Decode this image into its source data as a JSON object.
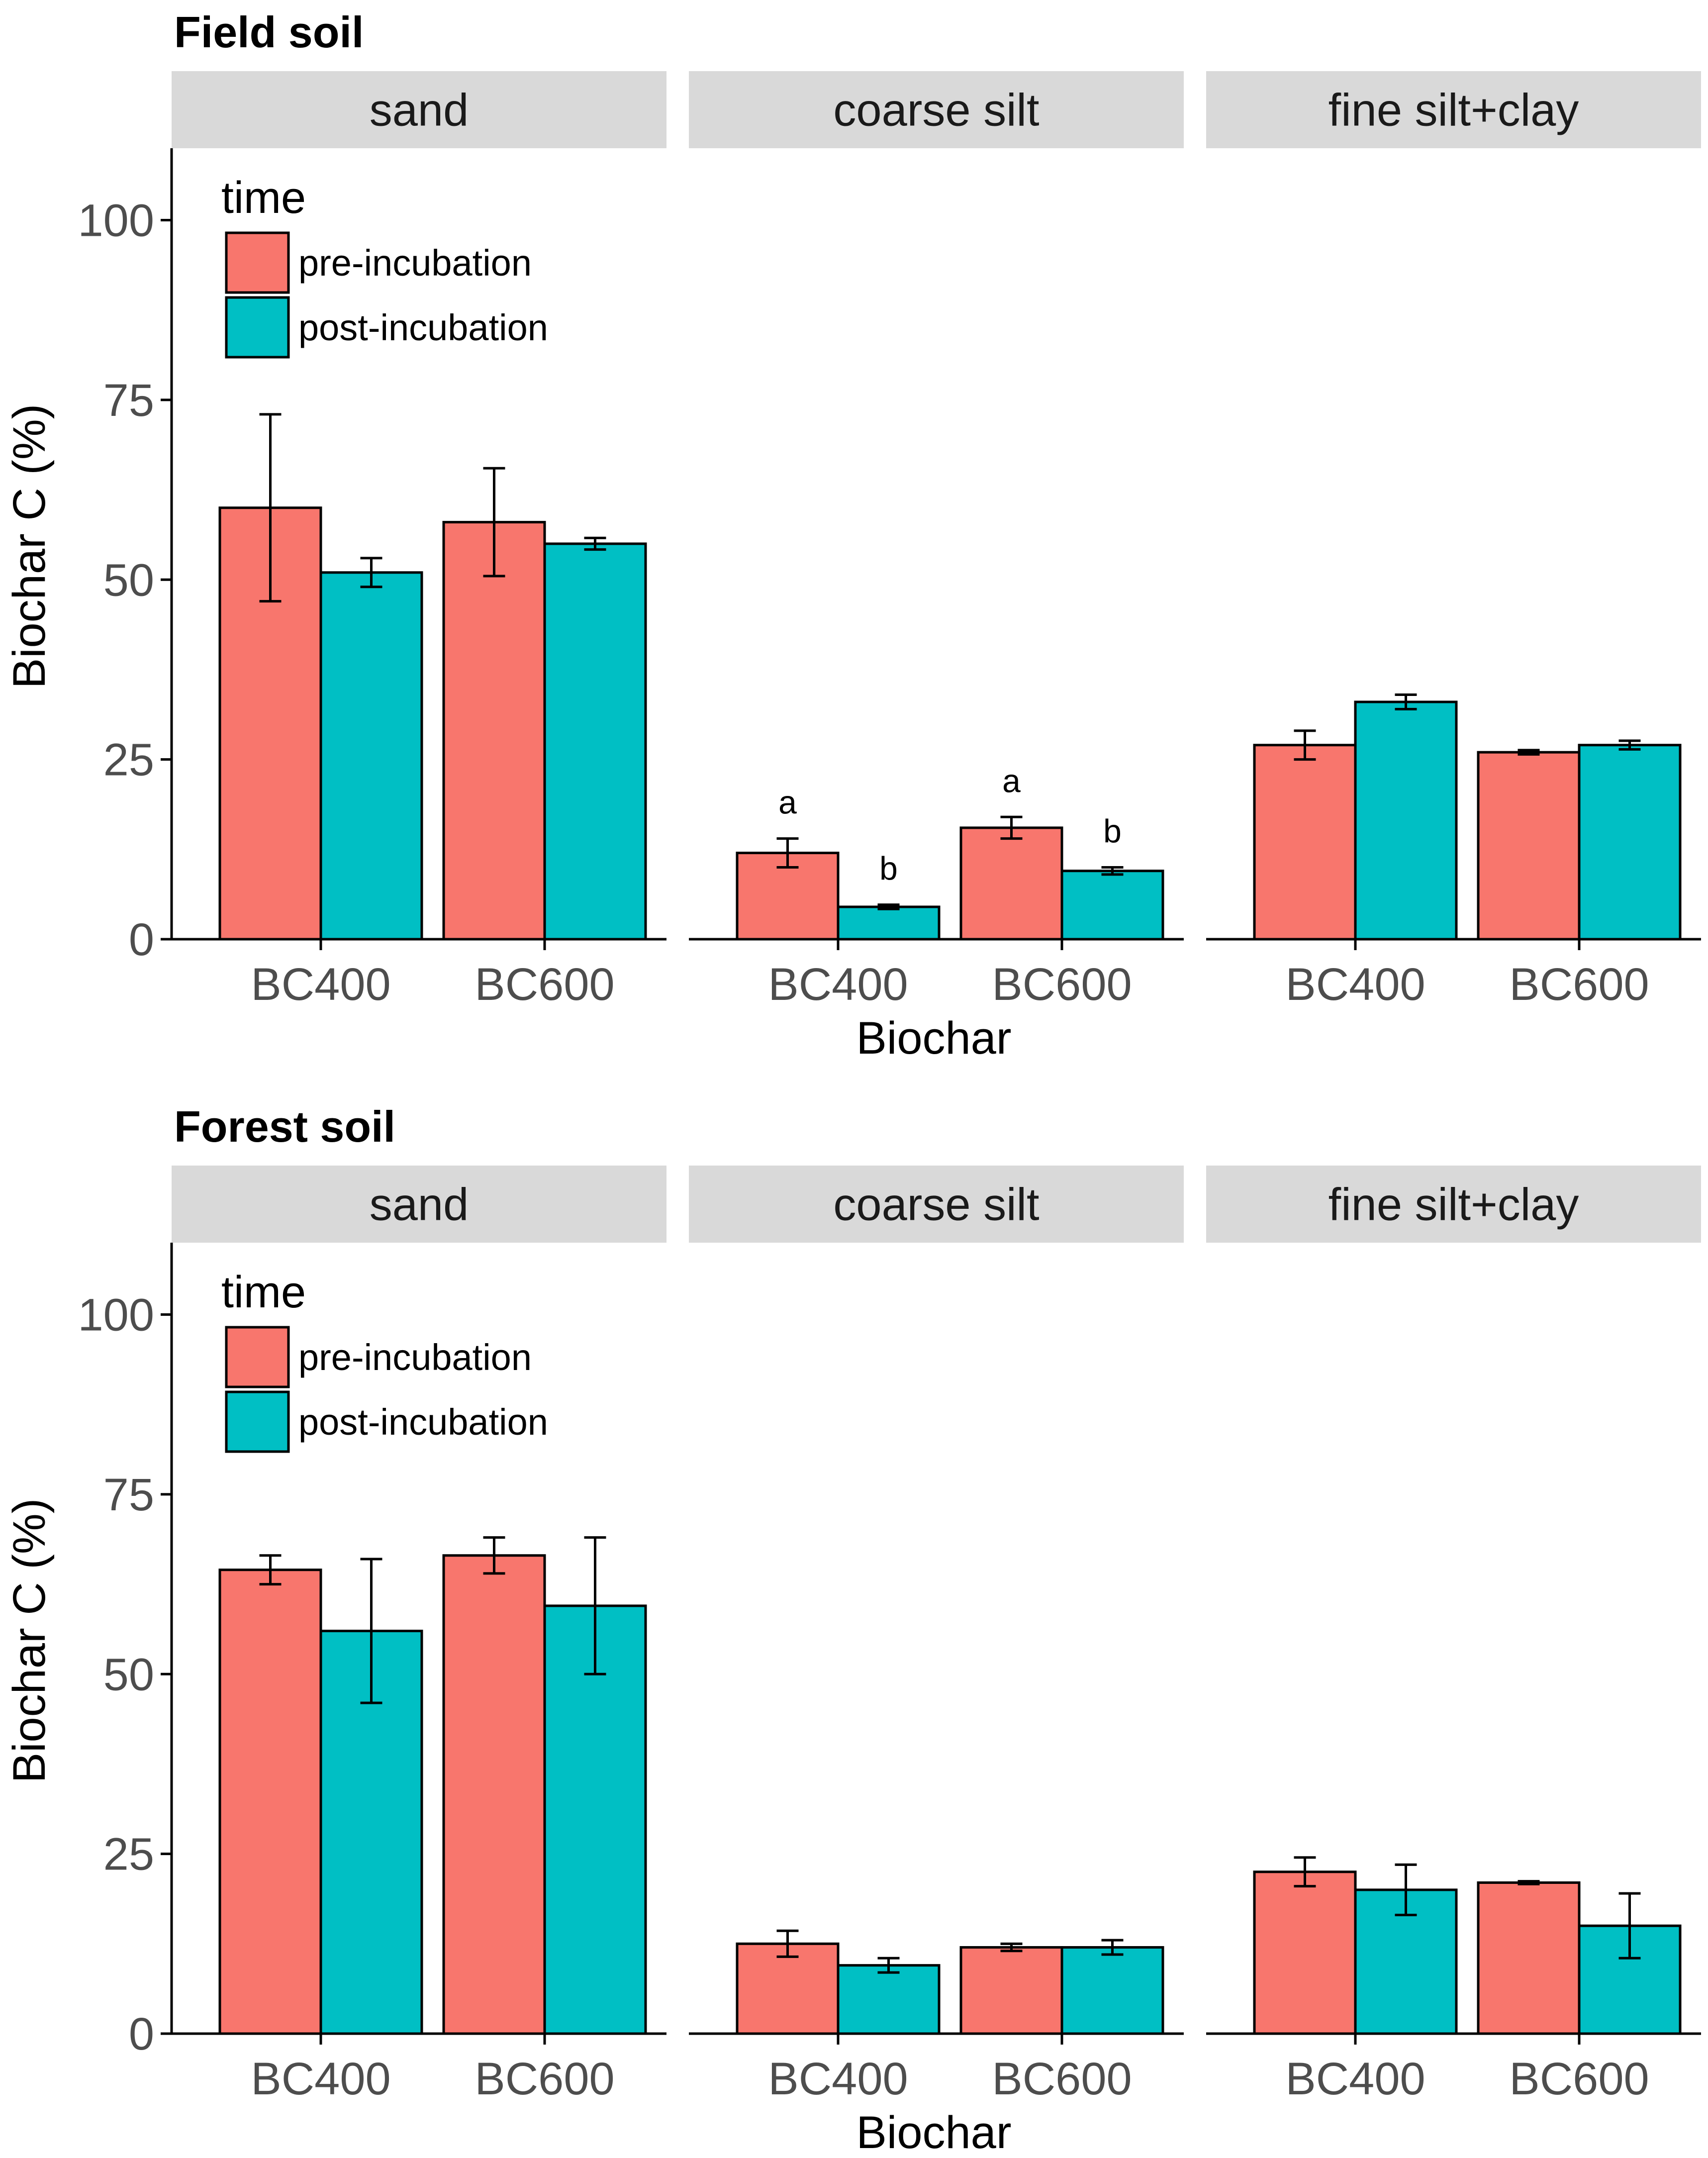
{
  "colors": {
    "pre_incubation": "#F8766D",
    "post_incubation": "#00BFC4",
    "strip_background": "#D9D9D9"
  },
  "chart_data": [
    {
      "type": "bar",
      "title": "Field soil",
      "xlabel": "Biochar",
      "ylabel": "Biochar C (%)",
      "ylim": [
        0,
        110
      ],
      "yticks": [
        "0",
        "25",
        "50",
        "75",
        "100"
      ],
      "categories": [
        "BC400",
        "BC600"
      ],
      "facets": [
        "sand",
        "coarse silt",
        "fine silt+clay"
      ],
      "legend": {
        "title": "time",
        "position": "top-left",
        "entries": [
          "pre-incubation",
          "post-incubation"
        ]
      },
      "series": [
        {
          "name": "pre-incubation",
          "values": {
            "sand": [
              60,
              58
            ],
            "coarse silt": [
              12,
              15.5
            ],
            "fine silt+clay": [
              27,
              26
            ]
          },
          "errors": {
            "sand": [
              13,
              7.5
            ],
            "coarse silt": [
              2,
              1.5
            ],
            "fine silt+clay": [
              2,
              0.3
            ]
          },
          "letters": {
            "coarse silt": [
              "a",
              "a"
            ]
          }
        },
        {
          "name": "post-incubation",
          "values": {
            "sand": [
              51,
              55
            ],
            "coarse silt": [
              4.5,
              9.5
            ],
            "fine silt+clay": [
              33,
              27
            ]
          },
          "errors": {
            "sand": [
              2,
              0.8
            ],
            "coarse silt": [
              0.3,
              0.5
            ],
            "fine silt+clay": [
              1,
              0.6
            ]
          },
          "letters": {
            "coarse silt": [
              "b",
              "b"
            ]
          }
        }
      ]
    },
    {
      "type": "bar",
      "title": "Forest soil",
      "xlabel": "Biochar",
      "ylabel": "Biochar C (%)",
      "ylim": [
        0,
        110
      ],
      "yticks": [
        "0",
        "25",
        "50",
        "75",
        "100"
      ],
      "categories": [
        "BC400",
        "BC600"
      ],
      "facets": [
        "sand",
        "coarse silt",
        "fine silt+clay"
      ],
      "legend": {
        "title": "time",
        "position": "top-left",
        "entries": [
          "pre-incubation",
          "post-incubation"
        ]
      },
      "series": [
        {
          "name": "pre-incubation",
          "values": {
            "sand": [
              64.5,
              66.5
            ],
            "coarse silt": [
              12.5,
              12
            ],
            "fine silt+clay": [
              22.5,
              21
            ]
          },
          "errors": {
            "sand": [
              2,
              2.5
            ],
            "coarse silt": [
              1.8,
              0.5
            ],
            "fine silt+clay": [
              2,
              0.2
            ]
          },
          "letters": {}
        },
        {
          "name": "post-incubation",
          "values": {
            "sand": [
              56,
              59.5
            ],
            "coarse silt": [
              9.5,
              12
            ],
            "fine silt+clay": [
              20,
              15
            ]
          },
          "errors": {
            "sand": [
              10,
              9.5
            ],
            "coarse silt": [
              1,
              1
            ],
            "fine silt+clay": [
              3.5,
              4.5
            ]
          },
          "letters": {}
        }
      ]
    }
  ]
}
